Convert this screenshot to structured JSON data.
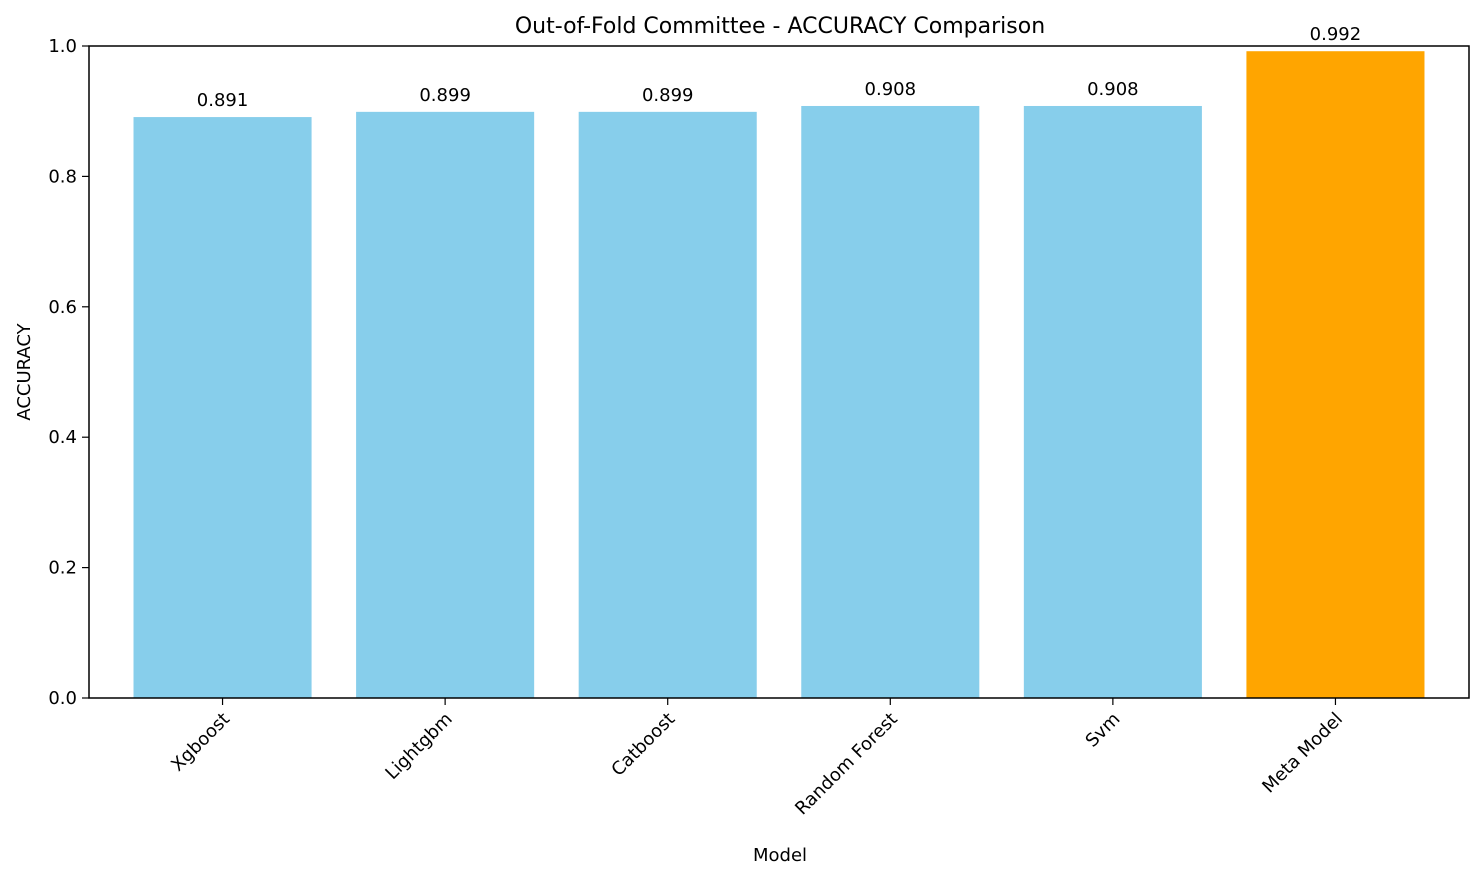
{
  "chart_data": {
    "type": "bar",
    "title": "Out-of-Fold Committee - ACCURACY Comparison",
    "xlabel": "Model",
    "ylabel": "ACCURACY",
    "categories": [
      "Xgboost",
      "Lightgbm",
      "Catboost",
      "Random Forest",
      "Svm",
      "Meta Model"
    ],
    "values": [
      0.891,
      0.899,
      0.899,
      0.908,
      0.908,
      0.992
    ],
    "value_labels": [
      "0.891",
      "0.899",
      "0.899",
      "0.908",
      "0.908",
      "0.992"
    ],
    "bar_colors": [
      "#87ceeb",
      "#87ceeb",
      "#87ceeb",
      "#87ceeb",
      "#87ceeb",
      "#ffa500"
    ],
    "ylim": [
      0,
      1.0
    ],
    "yticks": [
      0.0,
      0.2,
      0.4,
      0.6,
      0.8,
      1.0
    ],
    "ytick_labels": [
      "0.0",
      "0.2",
      "0.4",
      "0.6",
      "0.8",
      "1.0"
    ],
    "grid": false,
    "legend": "none"
  }
}
